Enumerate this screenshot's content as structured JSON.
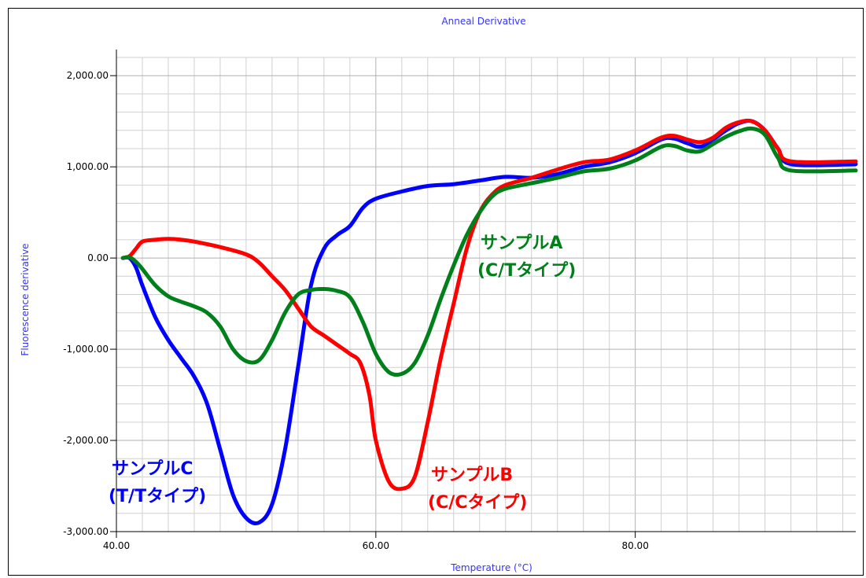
{
  "chart_data": {
    "type": "line",
    "title": "Anneal Derivative",
    "xlabel": "Temperature (°C)",
    "ylabel": "Fluorescence derivative",
    "xlim": [
      40,
      97
    ],
    "ylim": [
      -3000,
      2200
    ],
    "xticks": [
      40,
      60,
      80
    ],
    "xtick_labels": [
      "40.00",
      "60.00",
      "80.00"
    ],
    "yticks": [
      2000,
      1000,
      0,
      -1000,
      -2000,
      -3000
    ],
    "ytick_labels": [
      "2,000.00",
      "1,000.00",
      "0.00",
      "-1,000.00",
      "-2,000.00",
      "-3,000.00"
    ],
    "grid": true,
    "colors": {
      "title": "#3333ff",
      "axis_title": "#3333ff",
      "grid": "#d0d0d0"
    },
    "series": [
      {
        "color": "#0000ff",
        "x": [
          40.5,
          41.0,
          41.5,
          42.0,
          43.0,
          44.0,
          45.0,
          46.0,
          47.0,
          48.0,
          49.0,
          50.0,
          51.0,
          52.0,
          53.0,
          54.0,
          55.0,
          56.0,
          57.0,
          58.0,
          59.0,
          60.0,
          62.0,
          64.0,
          66.0,
          68.0,
          70.0,
          72.0,
          74.0,
          76.0,
          78.0,
          80.0,
          82.0,
          83.0,
          84.0,
          85.0,
          86.0,
          87.0,
          88.0,
          89.0,
          90.0,
          91.0,
          92.0,
          97.0
        ],
        "y": [
          0,
          0,
          -100,
          -300,
          -650,
          -900,
          -1100,
          -1300,
          -1600,
          -2100,
          -2600,
          -2850,
          -2900,
          -2700,
          -2100,
          -1200,
          -300,
          100,
          250,
          350,
          550,
          650,
          730,
          790,
          810,
          850,
          890,
          880,
          920,
          1000,
          1050,
          1150,
          1300,
          1310,
          1260,
          1220,
          1300,
          1400,
          1480,
          1500,
          1400,
          1200,
          1030,
          1030
        ]
      },
      {
        "color": "#ff0000",
        "x": [
          40.5,
          41.0,
          41.5,
          42.0,
          43.0,
          44.0,
          45.0,
          46.0,
          48.0,
          50.0,
          51.0,
          52.0,
          53.0,
          54.0,
          55.0,
          56.0,
          57.0,
          58.0,
          58.8,
          59.5,
          60.0,
          61.0,
          62.0,
          63.0,
          64.0,
          65.0,
          66.0,
          67.0,
          68.0,
          69.0,
          70.0,
          72.0,
          74.0,
          76.0,
          78.0,
          80.0,
          82.0,
          83.0,
          84.0,
          85.0,
          86.0,
          87.0,
          88.0,
          89.0,
          90.0,
          91.0,
          92.0,
          97.0
        ],
        "y": [
          0,
          20,
          100,
          180,
          200,
          210,
          200,
          180,
          120,
          40,
          -50,
          -200,
          -350,
          -550,
          -750,
          -850,
          -950,
          -1050,
          -1150,
          -1500,
          -2000,
          -2450,
          -2530,
          -2400,
          -1800,
          -1100,
          -500,
          100,
          500,
          700,
          800,
          880,
          970,
          1050,
          1080,
          1180,
          1320,
          1340,
          1300,
          1270,
          1320,
          1430,
          1490,
          1500,
          1400,
          1200,
          1060,
          1060
        ]
      },
      {
        "color": "#00801a",
        "x": [
          40.5,
          41.0,
          41.5,
          42.0,
          43.0,
          44.0,
          45.0,
          46.0,
          47.0,
          48.0,
          49.0,
          50.0,
          51.0,
          52.0,
          53.0,
          54.0,
          55.0,
          56.0,
          57.0,
          58.0,
          59.0,
          60.0,
          61.0,
          62.0,
          63.0,
          64.0,
          65.0,
          66.0,
          67.0,
          68.0,
          69.0,
          70.0,
          72.0,
          74.0,
          76.0,
          78.0,
          80.0,
          82.0,
          83.0,
          84.0,
          85.0,
          86.0,
          87.0,
          88.0,
          89.0,
          90.0,
          91.0,
          92.0,
          97.0
        ],
        "y": [
          0,
          10,
          -40,
          -120,
          -300,
          -420,
          -480,
          -530,
          -600,
          -750,
          -1000,
          -1130,
          -1120,
          -900,
          -600,
          -400,
          -350,
          -340,
          -360,
          -430,
          -700,
          -1050,
          -1250,
          -1270,
          -1150,
          -850,
          -450,
          -80,
          250,
          500,
          680,
          760,
          820,
          880,
          950,
          980,
          1070,
          1220,
          1230,
          1180,
          1170,
          1250,
          1330,
          1390,
          1420,
          1350,
          1100,
          960,
          960
        ]
      }
    ],
    "annotations": [
      {
        "line1": "サンプルA",
        "line2": "(C/Tタイプ)",
        "color": "#00801a"
      },
      {
        "line1": "サンプルB",
        "line2": "(C/Cタイプ)",
        "color": "#ff0000"
      },
      {
        "line1": "サンプルC",
        "line2": "(T/Tタイプ)",
        "color": "#0000ff"
      }
    ]
  }
}
